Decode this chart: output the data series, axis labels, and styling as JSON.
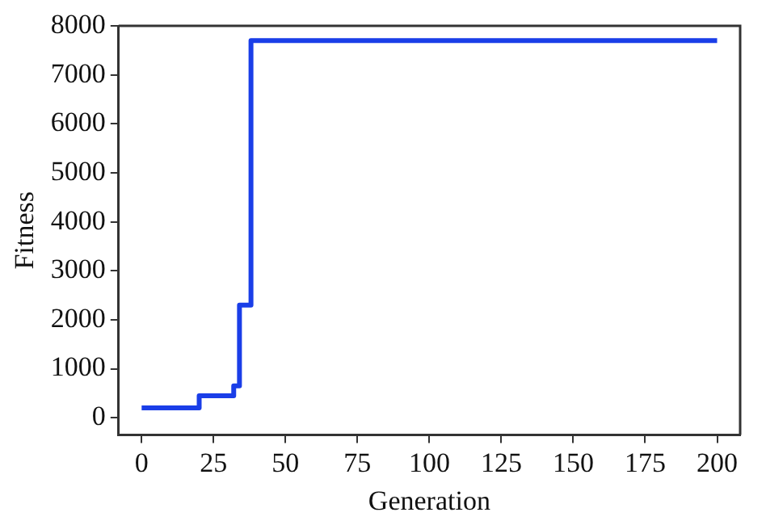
{
  "chart_data": {
    "type": "step",
    "xlabel": "Generation",
    "ylabel": "Fitness",
    "x": [
      0,
      20,
      32,
      34,
      38,
      200
    ],
    "series": [
      {
        "color": "#1a3ee8",
        "values": [
          200,
          450,
          650,
          2300,
          7700,
          7700
        ]
      }
    ],
    "xlim": [
      -8,
      208
    ],
    "xticks": [
      0,
      25,
      50,
      75,
      100,
      125,
      150,
      175,
      200
    ],
    "ylim": [
      -350,
      8000
    ],
    "yticks": [
      0,
      1000,
      2000,
      3000,
      4000,
      5000,
      6000,
      7000,
      8000
    ],
    "grid": false,
    "legend": false
  }
}
